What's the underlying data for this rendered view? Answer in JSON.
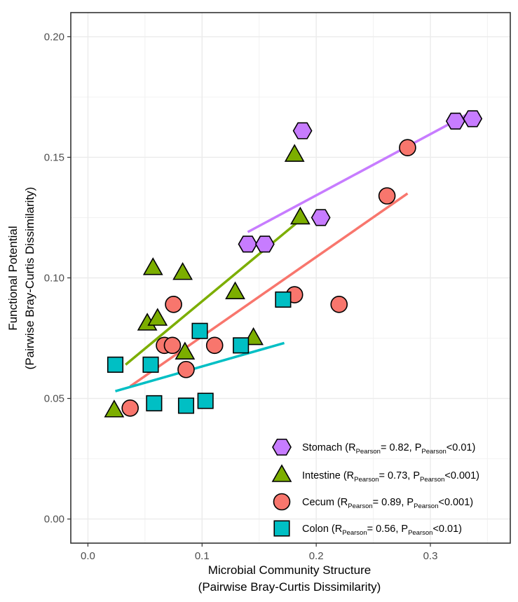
{
  "chart_data": {
    "type": "scatter",
    "title": "",
    "xlabel_line1": "Microbial Community Structure",
    "xlabel_line2": "(Pairwise Bray-Curtis Dissimilarity)",
    "ylabel_line1": "Functional Potential",
    "ylabel_line2": "(Pairwise Bray-Curtis Dissimilarity)",
    "xlim": [
      -0.015,
      0.37
    ],
    "ylim": [
      -0.01,
      0.21
    ],
    "x_ticks": [
      0.0,
      0.1,
      0.2,
      0.3
    ],
    "x_tick_labels": [
      "0.0",
      "0.1",
      "0.2",
      "0.3"
    ],
    "y_ticks": [
      0.0,
      0.05,
      0.1,
      0.15,
      0.2
    ],
    "y_tick_labels": [
      "0.00",
      "0.05",
      "0.10",
      "0.15",
      "0.20"
    ],
    "grid": true,
    "legend_position": "bottom-right",
    "series": [
      {
        "name": "Stomach",
        "shape": "hexagon",
        "color": "#c77cff",
        "legend_parts": [
          "Stomach (R",
          "Pearson",
          "= 0.82, P",
          "Pearson",
          "<0.01)"
        ],
        "points": [
          [
            0.188,
            0.161
          ],
          [
            0.14,
            0.114
          ],
          [
            0.155,
            0.114
          ],
          [
            0.204,
            0.125
          ],
          [
            0.322,
            0.165
          ],
          [
            0.337,
            0.166
          ]
        ],
        "fit_line": [
          [
            0.14,
            0.119
          ],
          [
            0.337,
            0.169
          ]
        ]
      },
      {
        "name": "Intestine",
        "shape": "triangle",
        "color": "#7cae00",
        "legend_parts": [
          "Intestine (R",
          "Pearson",
          "= 0.73, P",
          "Pearson",
          "<0.001)"
        ],
        "points": [
          [
            0.181,
            0.151
          ],
          [
            0.186,
            0.125
          ],
          [
            0.057,
            0.104
          ],
          [
            0.083,
            0.102
          ],
          [
            0.129,
            0.094
          ],
          [
            0.052,
            0.081
          ],
          [
            0.061,
            0.083
          ],
          [
            0.085,
            0.069
          ],
          [
            0.145,
            0.075
          ],
          [
            0.023,
            0.045
          ]
        ],
        "fit_line": [
          [
            0.033,
            0.064
          ],
          [
            0.186,
            0.124
          ]
        ]
      },
      {
        "name": "Cecum",
        "shape": "circle",
        "color": "#f8766d",
        "legend_parts": [
          "Cecum (R",
          "Pearson",
          "= 0.89, P",
          "Pearson",
          "<0.001)"
        ],
        "points": [
          [
            0.28,
            0.154
          ],
          [
            0.262,
            0.134
          ],
          [
            0.181,
            0.093
          ],
          [
            0.22,
            0.089
          ],
          [
            0.075,
            0.089
          ],
          [
            0.067,
            0.072
          ],
          [
            0.074,
            0.072
          ],
          [
            0.111,
            0.072
          ],
          [
            0.086,
            0.062
          ],
          [
            0.037,
            0.046
          ]
        ],
        "fit_line": [
          [
            0.037,
            0.055
          ],
          [
            0.28,
            0.135
          ]
        ]
      },
      {
        "name": "Colon",
        "shape": "square",
        "color": "#00bfc4",
        "legend_parts": [
          "Colon (R",
          "Pearson",
          "= 0.56, P",
          "Pearson",
          "<0.01)"
        ],
        "points": [
          [
            0.024,
            0.064
          ],
          [
            0.055,
            0.064
          ],
          [
            0.098,
            0.078
          ],
          [
            0.134,
            0.072
          ],
          [
            0.171,
            0.091
          ],
          [
            0.058,
            0.048
          ],
          [
            0.086,
            0.047
          ],
          [
            0.103,
            0.049
          ]
        ],
        "fit_line": [
          [
            0.024,
            0.053
          ],
          [
            0.172,
            0.073
          ]
        ]
      }
    ]
  }
}
